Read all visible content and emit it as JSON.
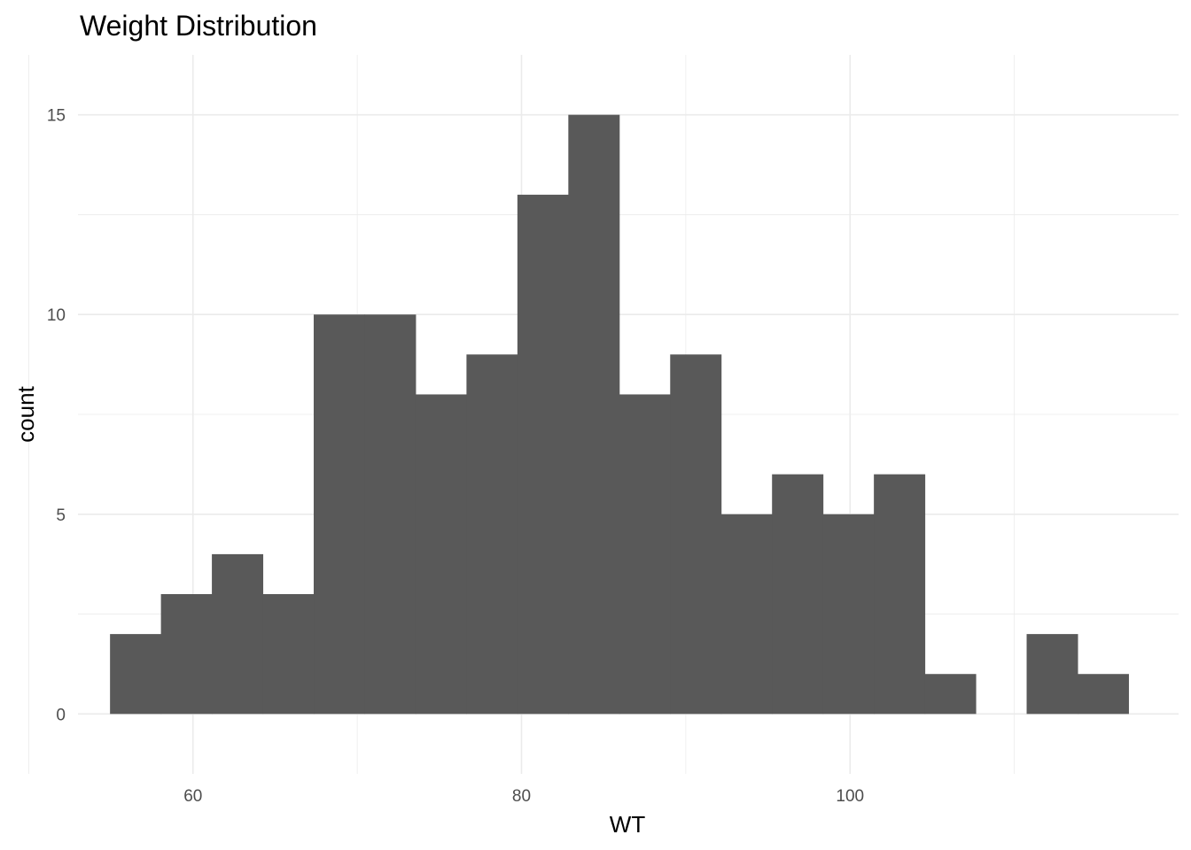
{
  "chart_data": {
    "type": "bar",
    "title": "Weight Distribution",
    "xlabel": "WT",
    "ylabel": "count",
    "bin_width": 3.1,
    "bins": [
      {
        "x": 56.5,
        "count": 2
      },
      {
        "x": 59.6,
        "count": 3
      },
      {
        "x": 62.7,
        "count": 4
      },
      {
        "x": 65.8,
        "count": 3
      },
      {
        "x": 68.9,
        "count": 10
      },
      {
        "x": 72.0,
        "count": 10
      },
      {
        "x": 75.1,
        "count": 8
      },
      {
        "x": 78.2,
        "count": 9
      },
      {
        "x": 81.3,
        "count": 13
      },
      {
        "x": 84.4,
        "count": 15
      },
      {
        "x": 87.5,
        "count": 8
      },
      {
        "x": 90.6,
        "count": 9
      },
      {
        "x": 93.7,
        "count": 5
      },
      {
        "x": 96.8,
        "count": 6
      },
      {
        "x": 99.9,
        "count": 5
      },
      {
        "x": 103.0,
        "count": 6
      },
      {
        "x": 106.1,
        "count": 1
      },
      {
        "x": 109.2,
        "count": 0
      },
      {
        "x": 112.3,
        "count": 2
      },
      {
        "x": 115.4,
        "count": 1
      }
    ],
    "xlim": [
      53,
      120
    ],
    "ylim": [
      -1.5,
      16.5
    ],
    "x_ticks": [
      60,
      80,
      100
    ],
    "x_tick_labels": [
      "60",
      "80",
      "100"
    ],
    "y_ticks": [
      0,
      5,
      10,
      15
    ],
    "y_tick_labels": [
      "0",
      "5",
      "10",
      "15"
    ],
    "grid": true,
    "bar_color": "#595959",
    "grid_color": "#ebebeb"
  }
}
